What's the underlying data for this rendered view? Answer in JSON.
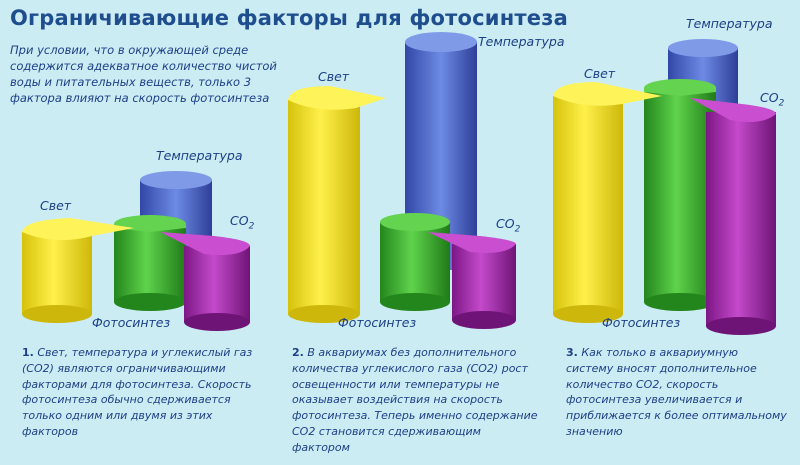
{
  "title": "Ограничивающие факторы для фотосинтеза",
  "intro": "При условии, что в окружающей среде содержится адекватное количество чистой воды и питательных веществ, только 3 фактора влияют на скорость фотосинтеза",
  "labels": {
    "light": "Свет",
    "temperature": "Температура",
    "co2": "CO",
    "co2_sub": "2",
    "photosynthesis": "Фотосинтез"
  },
  "colors": {
    "light": "#f2e21f",
    "temperature": "#4a66c6",
    "photosynthesis": "#3db22e",
    "co2": "#a12aa8",
    "background": "#ccecf4"
  },
  "captions": [
    {
      "num": "1.",
      "text": "Свет, температура и углекислый газ (CO2) являются ограничивающими факторами для фотосинтеза. Скорость фотосинтеза обычно сдерживается только одним или двумя из этих факторов"
    },
    {
      "num": "2.",
      "text": "В аквариумах без дополнительного количества углекислого газа (CO2) рост освещенности или температуры не оказывает воздействия на скорость фотосинтеза. Теперь именно содержание CO2 становится сдерживающим фактором"
    },
    {
      "num": "3.",
      "text": "Как только в аквариумную систему вносят дополнительное количество CO2, скорость фотосинтеза увеличивается и приближается к более оптимальному значению"
    }
  ]
}
